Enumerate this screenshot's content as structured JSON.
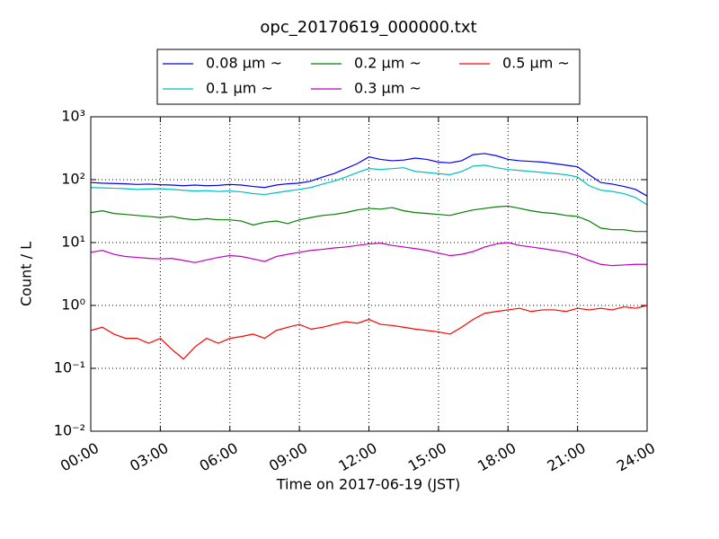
{
  "chart_data": {
    "type": "line",
    "title": "opc_20170619_000000.txt",
    "xlabel": "Time on 2017-06-19 (JST)",
    "ylabel": "Count / L",
    "x": [
      0,
      0.5,
      1,
      1.5,
      2,
      2.5,
      3,
      3.5,
      4,
      4.5,
      5,
      5.5,
      6,
      6.5,
      7,
      7.5,
      8,
      8.5,
      9,
      9.5,
      10,
      10.5,
      11,
      11.5,
      12,
      12.5,
      13,
      13.5,
      14,
      14.5,
      15,
      15.5,
      16,
      16.5,
      17,
      17.5,
      18,
      18.5,
      19,
      19.5,
      20,
      20.5,
      21,
      21.5,
      22,
      22.5,
      23,
      23.5,
      24
    ],
    "xlim": [
      0,
      24
    ],
    "xticks": [
      {
        "value": 0,
        "label": "00:00"
      },
      {
        "value": 3,
        "label": "03:00"
      },
      {
        "value": 6,
        "label": "06:00"
      },
      {
        "value": 9,
        "label": "09:00"
      },
      {
        "value": 12,
        "label": "12:00"
      },
      {
        "value": 15,
        "label": "15:00"
      },
      {
        "value": 18,
        "label": "18:00"
      },
      {
        "value": 21,
        "label": "21:00"
      },
      {
        "value": 24,
        "label": "24:00"
      }
    ],
    "ylim": [
      0.01,
      1000
    ],
    "yticks": [
      {
        "value": 0.01,
        "label": "10⁻²"
      },
      {
        "value": 0.1,
        "label": "10⁻¹"
      },
      {
        "value": 1,
        "label": "10⁰"
      },
      {
        "value": 10,
        "label": "10¹"
      },
      {
        "value": 100,
        "label": "10²"
      },
      {
        "value": 1000,
        "label": "10³"
      }
    ],
    "log_y": true,
    "grid": true,
    "legend_loc": "top",
    "legend_columns": 3,
    "series": [
      {
        "name": "0.08 μm ~",
        "color": "#0000ff",
        "values": [
          90,
          88,
          87,
          86,
          84,
          85,
          83,
          82,
          80,
          82,
          80,
          81,
          84,
          82,
          78,
          75,
          82,
          86,
          88,
          95,
          110,
          125,
          150,
          180,
          230,
          210,
          200,
          205,
          220,
          210,
          190,
          185,
          200,
          250,
          260,
          240,
          210,
          200,
          195,
          190,
          180,
          170,
          160,
          120,
          90,
          85,
          78,
          70,
          55
        ]
      },
      {
        "name": "0.1 μm ~",
        "color": "#00bfbf",
        "values": [
          75,
          74,
          73,
          72,
          70,
          71,
          72,
          70,
          68,
          66,
          67,
          65,
          66,
          64,
          60,
          58,
          62,
          66,
          70,
          75,
          85,
          95,
          110,
          130,
          150,
          145,
          150,
          155,
          135,
          130,
          125,
          120,
          135,
          165,
          170,
          155,
          145,
          140,
          135,
          130,
          125,
          120,
          110,
          80,
          68,
          65,
          60,
          52,
          40
        ]
      },
      {
        "name": "0.2 μm ~",
        "color": "#008000",
        "values": [
          30,
          32,
          29,
          28,
          27,
          26,
          25,
          26,
          24,
          23,
          24,
          23,
          23,
          22,
          19,
          21,
          22,
          20,
          23,
          25,
          27,
          28,
          30,
          33,
          35,
          34,
          36,
          32,
          30,
          29,
          28,
          27,
          30,
          33,
          35,
          37,
          38,
          35,
          32,
          30,
          29,
          27,
          26,
          22,
          17,
          16,
          16,
          15,
          15
        ]
      },
      {
        "name": "0.3 μm ~",
        "color": "#bf00bf",
        "values": [
          7,
          7.5,
          6.5,
          6,
          5.8,
          5.6,
          5.5,
          5.6,
          5.2,
          4.8,
          5.3,
          5.8,
          6.2,
          6,
          5.5,
          5,
          6,
          6.5,
          7,
          7.5,
          7.8,
          8.2,
          8.5,
          9,
          9.5,
          9.8,
          9,
          8.5,
          8,
          7.5,
          6.8,
          6.2,
          6.5,
          7.2,
          8.5,
          9.5,
          10,
          9,
          8.5,
          8,
          7.5,
          7,
          6.2,
          5.2,
          4.5,
          4.3,
          4.4,
          4.5,
          4.5
        ]
      },
      {
        "name": "0.5 μm ~",
        "color": "#ff0000",
        "values": [
          0.4,
          0.45,
          0.35,
          0.3,
          0.3,
          0.25,
          0.3,
          0.2,
          0.14,
          0.22,
          0.3,
          0.25,
          0.3,
          0.32,
          0.35,
          0.3,
          0.4,
          0.45,
          0.5,
          0.42,
          0.45,
          0.5,
          0.55,
          0.52,
          0.6,
          0.5,
          0.48,
          0.45,
          0.42,
          0.4,
          0.38,
          0.35,
          0.45,
          0.6,
          0.75,
          0.8,
          0.85,
          0.9,
          0.8,
          0.85,
          0.85,
          0.8,
          0.9,
          0.85,
          0.9,
          0.85,
          0.95,
          0.9,
          1.0
        ]
      }
    ]
  }
}
